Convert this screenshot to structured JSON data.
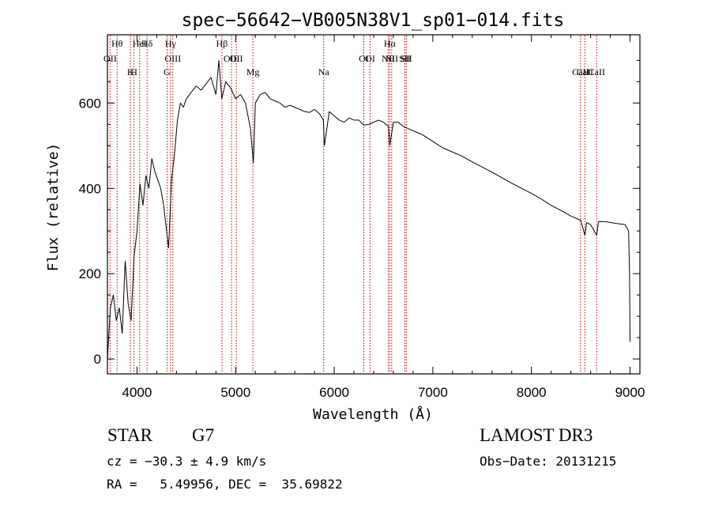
{
  "chart_data": {
    "type": "line",
    "title": "spec−56642−VB005N38V1_sp01−014.fits",
    "xlabel": "Wavelength (Å)",
    "ylabel": "Flux (relative)",
    "xlim": [
      3700,
      9100
    ],
    "ylim": [
      -35,
      760
    ],
    "xticks": [
      4000,
      5000,
      6000,
      7000,
      8000,
      9000
    ],
    "yticks": [
      0,
      200,
      400,
      600
    ],
    "grid": false,
    "series": [
      {
        "name": "flux",
        "x": [
          3700,
          3730,
          3760,
          3790,
          3820,
          3850,
          3880,
          3910,
          3940,
          3970,
          4000,
          4030,
          4060,
          4090,
          4120,
          4150,
          4180,
          4210,
          4240,
          4270,
          4300,
          4320,
          4350,
          4380,
          4410,
          4440,
          4470,
          4500,
          4550,
          4600,
          4650,
          4700,
          4750,
          4800,
          4830,
          4860,
          4900,
          4950,
          5000,
          5050,
          5100,
          5150,
          5180,
          5200,
          5250,
          5300,
          5350,
          5400,
          5450,
          5500,
          5550,
          5600,
          5650,
          5700,
          5750,
          5800,
          5850,
          5890,
          5900,
          5950,
          6000,
          6050,
          6100,
          6150,
          6200,
          6250,
          6300,
          6350,
          6400,
          6450,
          6500,
          6550,
          6563,
          6600,
          6650,
          6700,
          6750,
          6800,
          6850,
          6900,
          7000,
          7100,
          7200,
          7300,
          7400,
          7500,
          7600,
          7700,
          7800,
          7900,
          8000,
          8100,
          8200,
          8300,
          8400,
          8500,
          8542,
          8560,
          8600,
          8662,
          8680,
          8750,
          8850,
          8950,
          8985,
          8995,
          9000
        ],
        "y": [
          0,
          120,
          150,
          90,
          120,
          60,
          230,
          130,
          90,
          240,
          300,
          410,
          360,
          430,
          400,
          470,
          440,
          420,
          400,
          360,
          300,
          260,
          420,
          480,
          560,
          600,
          590,
          610,
          625,
          640,
          630,
          645,
          660,
          620,
          700,
          610,
          650,
          635,
          610,
          620,
          600,
          540,
          460,
          600,
          620,
          625,
          610,
          605,
          600,
          590,
          595,
          590,
          585,
          580,
          578,
          585,
          575,
          560,
          500,
          580,
          570,
          560,
          555,
          565,
          560,
          560,
          548,
          550,
          555,
          560,
          555,
          545,
          500,
          555,
          555,
          545,
          540,
          535,
          530,
          525,
          510,
          495,
          485,
          475,
          462,
          450,
          438,
          425,
          412,
          400,
          388,
          375,
          360,
          348,
          335,
          325,
          290,
          320,
          315,
          290,
          322,
          322,
          318,
          315,
          300,
          200,
          40
        ]
      }
    ],
    "line_groups": [
      {
        "labels": [
          "Hθ",
          "HeI",
          "Hγ",
          "Hδ",
          "Hβ",
          "Hα"
        ],
        "x": [
          3798,
          4026,
          4340,
          4102,
          4861,
          6563
        ]
      },
      {
        "labels": [
          "OII",
          "OIII",
          "OIII",
          "OII",
          "OI",
          "OI",
          "NII",
          "NII",
          "SII",
          "SII"
        ],
        "x": [
          3727,
          4363,
          4959,
          5007,
          6300,
          6364,
          6548,
          6583,
          6716,
          6731
        ]
      },
      {
        "labels": [
          "K",
          "H",
          "G",
          "Mg",
          "Na",
          "CaII",
          "CaII",
          "CaII"
        ],
        "x": [
          3934,
          3969,
          4305,
          5175,
          5893,
          8498,
          8542,
          8662
        ]
      }
    ],
    "line_label_names": [
      "Hθ",
      "K",
      "Hδ",
      "OIII",
      "OIII",
      "CI",
      "Hα",
      "SII",
      "CaII",
      "OII",
      "HeI",
      "SII",
      "Hγ",
      "OIII",
      "NII",
      "Li",
      "CaII",
      "OII",
      "Hη",
      "H",
      "G",
      "Hβ",
      "Mg",
      "Na",
      "CI",
      "NII",
      "SII",
      "CaII"
    ]
  },
  "info": {
    "object_class": "STAR",
    "subclass": "G7",
    "survey": "LAMOST DR3",
    "redshift": "cz = −30.3 ± 4.9 km/s",
    "obs_date": "Obs−Date: 20131215",
    "coords": "RA =   5.49956, DEC =  35.69822"
  }
}
